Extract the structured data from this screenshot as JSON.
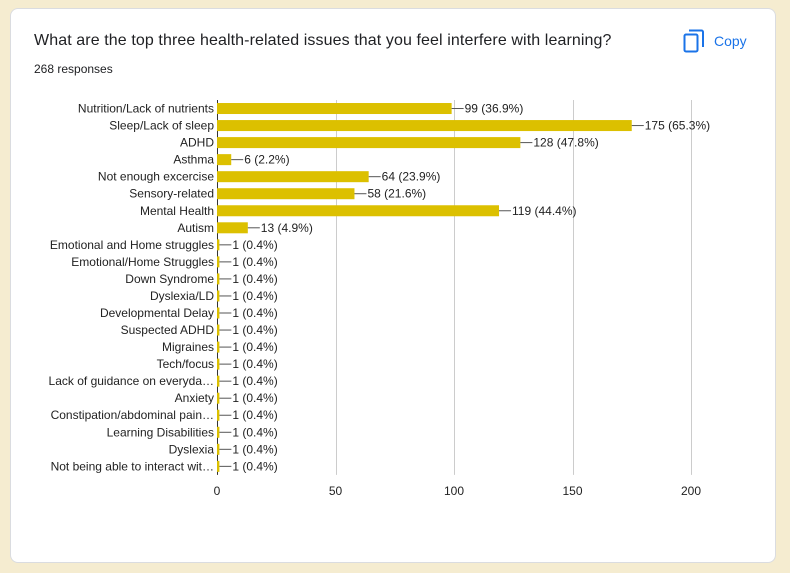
{
  "header": {
    "title": "What are the top three health-related issues that you feel interfere with learning?",
    "responses": "268 responses",
    "copy_label": "Copy",
    "copy_icon": "copy-icon"
  },
  "colors": {
    "bar": "#dcc000",
    "accent": "#1a73e8"
  },
  "chart_data": {
    "type": "bar",
    "orientation": "horizontal",
    "categories": [
      "Nutrition/Lack of nutrients",
      "Sleep/Lack of sleep",
      "ADHD",
      "Asthma",
      "Not enough excercise",
      "Sensory-related",
      "Mental Health",
      "Autism",
      "Emotional and Home struggles",
      "Emotional/Home Struggles",
      "Down Syndrome",
      "Dyslexia/LD",
      "Developmental Delay",
      "Suspected ADHD",
      "Migraines",
      "Tech/focus",
      "Lack of guidance on everyda…",
      "Anxiety",
      "Constipation/abdominal pain…",
      "Learning Disabilities",
      "Dyslexia",
      "Not being able to interact wit…"
    ],
    "values": [
      99,
      175,
      128,
      6,
      64,
      58,
      119,
      13,
      1,
      1,
      1,
      1,
      1,
      1,
      1,
      1,
      1,
      1,
      1,
      1,
      1,
      1
    ],
    "data_labels": [
      "99 (36.9%)",
      "175 (65.3%)",
      "128 (47.8%)",
      "6 (2.2%)",
      "64 (23.9%)",
      "58 (21.6%)",
      "119 (44.4%)",
      "13 (4.9%)",
      "1 (0.4%)",
      "1 (0.4%)",
      "1 (0.4%)",
      "1 (0.4%)",
      "1 (0.4%)",
      "1 (0.4%)",
      "1 (0.4%)",
      "1 (0.4%)",
      "1 (0.4%)",
      "1 (0.4%)",
      "1 (0.4%)",
      "1 (0.4%)",
      "1 (0.4%)",
      "1 (0.4%)"
    ],
    "xlim": [
      0,
      200
    ],
    "xticks": [
      "0",
      "50",
      "100",
      "150",
      "200"
    ],
    "grid": true,
    "legend": "none"
  }
}
